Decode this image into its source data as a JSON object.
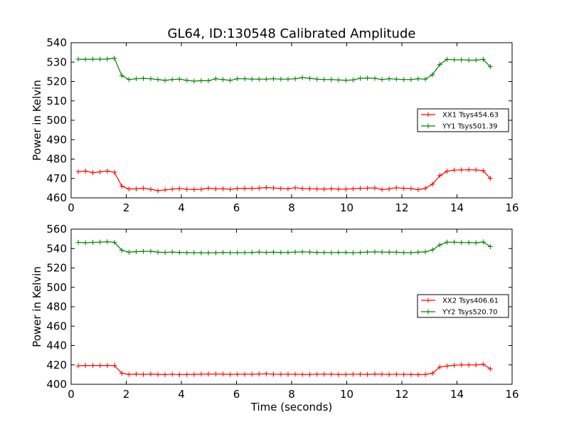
{
  "chart_data": [
    {
      "type": "line",
      "title": "GL64, ID:130548 Calibrated Amplitude",
      "xlabel": "",
      "ylabel": "Power in Kelvin",
      "xlim": [
        0,
        16
      ],
      "ylim": [
        460,
        540
      ],
      "xticks": [
        0,
        2,
        4,
        6,
        8,
        10,
        12,
        14,
        16
      ],
      "xtick_labels": [
        "0",
        "2",
        "4",
        "6",
        "8",
        "10",
        "12",
        "14",
        "16"
      ],
      "yticks": [
        460,
        470,
        480,
        490,
        500,
        510,
        520,
        530,
        540
      ],
      "ytick_labels": [
        "460",
        "470",
        "480",
        "490",
        "500",
        "510",
        "520",
        "530",
        "540"
      ],
      "grid": false,
      "legend_position": "center-right",
      "x": [
        0.26,
        0.52,
        0.79,
        1.05,
        1.31,
        1.57,
        1.84,
        2.1,
        2.36,
        2.62,
        2.89,
        3.15,
        3.41,
        3.67,
        3.93,
        4.2,
        4.46,
        4.72,
        4.98,
        5.25,
        5.51,
        5.77,
        6.03,
        6.3,
        6.56,
        6.82,
        7.08,
        7.34,
        7.61,
        7.87,
        8.13,
        8.39,
        8.66,
        8.92,
        9.18,
        9.44,
        9.7,
        9.97,
        10.23,
        10.49,
        10.75,
        11.02,
        11.28,
        11.54,
        11.8,
        12.07,
        12.33,
        12.59,
        12.85,
        13.11,
        13.38,
        13.64,
        13.9,
        14.16,
        14.43,
        14.69,
        14.95,
        15.21
      ],
      "series": [
        {
          "name": "XX1 Tsys454.63",
          "color": "#ff0000",
          "values": [
            473.5,
            473.8,
            473.0,
            473.4,
            473.8,
            473.2,
            466.0,
            464.6,
            464.6,
            465.0,
            464.4,
            463.7,
            464.1,
            464.5,
            464.8,
            464.4,
            464.3,
            464.4,
            465.0,
            464.6,
            464.7,
            464.4,
            464.8,
            464.9,
            464.8,
            465.0,
            465.3,
            465.1,
            464.8,
            464.7,
            465.2,
            464.8,
            464.7,
            464.6,
            464.5,
            464.7,
            464.5,
            464.5,
            464.7,
            464.9,
            465.0,
            465.1,
            464.3,
            464.6,
            465.2,
            464.9,
            464.8,
            464.2,
            464.9,
            467.0,
            471.5,
            473.7,
            474.3,
            474.4,
            474.5,
            474.4,
            474.0,
            470.0
          ]
        },
        {
          "name": "YY1 Tsys501.39",
          "color": "#008000",
          "values": [
            531.5,
            531.4,
            531.5,
            531.5,
            531.6,
            532.0,
            523.0,
            521.0,
            521.4,
            521.6,
            521.4,
            521.0,
            520.6,
            521.0,
            521.2,
            520.6,
            520.2,
            520.4,
            520.4,
            521.4,
            521.0,
            520.6,
            521.4,
            521.4,
            521.2,
            521.2,
            521.2,
            521.4,
            521.2,
            521.2,
            521.4,
            522.0,
            521.6,
            521.2,
            521.0,
            521.0,
            520.8,
            520.6,
            520.8,
            521.6,
            521.8,
            521.6,
            521.0,
            521.4,
            521.2,
            521.0,
            521.0,
            521.4,
            521.2,
            523.5,
            528.8,
            531.4,
            531.2,
            531.2,
            531.0,
            531.0,
            531.4,
            527.6
          ]
        }
      ]
    },
    {
      "type": "line",
      "title": "",
      "xlabel": "Time (seconds)",
      "ylabel": "Power in Kelvin",
      "xlim": [
        0,
        16
      ],
      "ylim": [
        400,
        560
      ],
      "xticks": [
        0,
        2,
        4,
        6,
        8,
        10,
        12,
        14,
        16
      ],
      "xtick_labels": [
        "0",
        "2",
        "4",
        "6",
        "8",
        "10",
        "12",
        "14",
        "16"
      ],
      "yticks": [
        400,
        420,
        440,
        460,
        480,
        500,
        520,
        540,
        560
      ],
      "ytick_labels": [
        "400",
        "420",
        "440",
        "460",
        "480",
        "500",
        "520",
        "540",
        "560"
      ],
      "grid": false,
      "legend_position": "center-right",
      "x": [
        0.26,
        0.52,
        0.79,
        1.05,
        1.31,
        1.57,
        1.84,
        2.1,
        2.36,
        2.62,
        2.89,
        3.15,
        3.41,
        3.67,
        3.93,
        4.2,
        4.46,
        4.72,
        4.98,
        5.25,
        5.51,
        5.77,
        6.03,
        6.3,
        6.56,
        6.82,
        7.08,
        7.34,
        7.61,
        7.87,
        8.13,
        8.39,
        8.66,
        8.92,
        9.18,
        9.44,
        9.7,
        9.97,
        10.23,
        10.49,
        10.75,
        11.02,
        11.28,
        11.54,
        11.8,
        12.07,
        12.33,
        12.59,
        12.85,
        13.11,
        13.38,
        13.64,
        13.9,
        14.16,
        14.43,
        14.69,
        14.95,
        15.21
      ],
      "series": [
        {
          "name": "XX2 Tsys406.61",
          "color": "#ff0000",
          "values": [
            419.0,
            419.4,
            419.4,
            419.4,
            419.4,
            419.4,
            411.4,
            410.2,
            410.6,
            410.2,
            410.6,
            410.2,
            410.0,
            410.4,
            410.0,
            410.2,
            410.2,
            410.6,
            410.6,
            410.6,
            410.6,
            410.2,
            410.4,
            410.4,
            410.4,
            410.6,
            410.8,
            410.4,
            410.4,
            410.4,
            410.4,
            410.2,
            410.2,
            410.4,
            410.4,
            410.4,
            410.2,
            410.2,
            410.4,
            410.4,
            410.2,
            410.6,
            410.4,
            410.2,
            410.4,
            410.2,
            410.2,
            410.0,
            410.2,
            411.4,
            417.8,
            418.8,
            419.6,
            420.0,
            420.0,
            420.0,
            420.6,
            416.0
          ]
        },
        {
          "name": "YY2 Tsys520.70",
          "color": "#008000",
          "values": [
            546.4,
            546.0,
            546.4,
            546.6,
            547.0,
            546.4,
            538.2,
            536.2,
            536.8,
            537.2,
            537.2,
            536.2,
            536.0,
            536.4,
            536.0,
            535.8,
            535.8,
            535.6,
            535.6,
            535.6,
            536.0,
            535.8,
            535.8,
            535.8,
            536.0,
            536.4,
            536.0,
            536.2,
            536.0,
            536.0,
            536.4,
            536.6,
            536.4,
            536.0,
            536.0,
            535.8,
            536.0,
            536.0,
            535.6,
            536.0,
            536.4,
            536.6,
            536.4,
            536.2,
            536.2,
            535.8,
            535.8,
            536.2,
            536.6,
            538.6,
            543.8,
            546.6,
            546.6,
            546.2,
            546.2,
            546.0,
            546.8,
            542.0
          ]
        }
      ]
    }
  ]
}
